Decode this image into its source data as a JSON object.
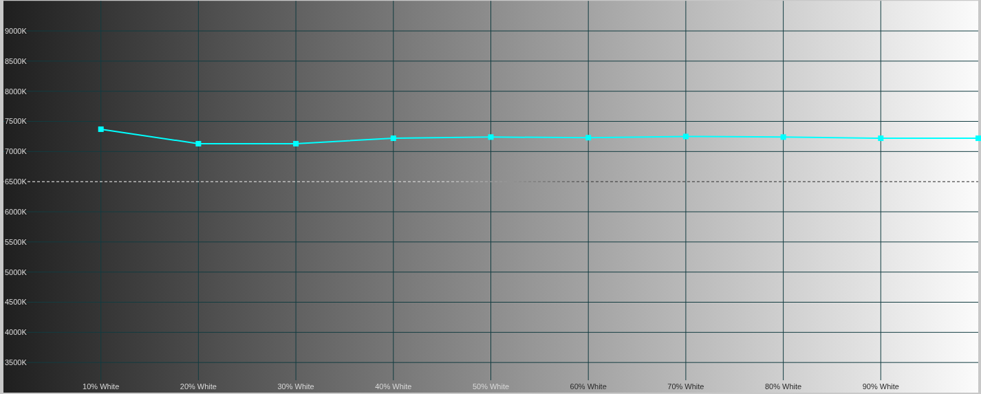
{
  "chart_data": {
    "type": "line",
    "x": [
      10,
      20,
      30,
      40,
      50,
      60,
      70,
      80,
      90,
      100
    ],
    "series": [
      {
        "color": "#00ffff",
        "values": [
          7370,
          7130,
          7130,
          7220,
          7240,
          7230,
          7250,
          7240,
          7220,
          7220
        ]
      }
    ],
    "xlim": [
      0,
      100
    ],
    "xticks": [
      {
        "value": 10,
        "label": "10% White"
      },
      {
        "value": 20,
        "label": "20% White"
      },
      {
        "value": 30,
        "label": "30% White"
      },
      {
        "value": 40,
        "label": "40% White"
      },
      {
        "value": 50,
        "label": "50% White"
      },
      {
        "value": 60,
        "label": "60% White"
      },
      {
        "value": 70,
        "label": "70% White"
      },
      {
        "value": 80,
        "label": "80% White"
      },
      {
        "value": 90,
        "label": "90% White"
      }
    ],
    "ylim": [
      3000,
      9500
    ],
    "yticks": [
      {
        "value": 3500,
        "label": "3500K"
      },
      {
        "value": 4000,
        "label": "4000K"
      },
      {
        "value": 4500,
        "label": "4500K"
      },
      {
        "value": 5000,
        "label": "5000K"
      },
      {
        "value": 5500,
        "label": "5500K"
      },
      {
        "value": 6000,
        "label": "6000K"
      },
      {
        "value": 6500,
        "label": "6500K"
      },
      {
        "value": 7000,
        "label": "7000K"
      },
      {
        "value": 7500,
        "label": "7500K"
      },
      {
        "value": 8000,
        "label": "8000K"
      },
      {
        "value": 8500,
        "label": "8500K"
      },
      {
        "value": 9000,
        "label": "9000K"
      }
    ],
    "grid": true,
    "marker": "square",
    "line_style": "solid",
    "ref_lines": [
      {
        "axis": "y",
        "value": 6500,
        "line_style": "dashed"
      }
    ]
  }
}
